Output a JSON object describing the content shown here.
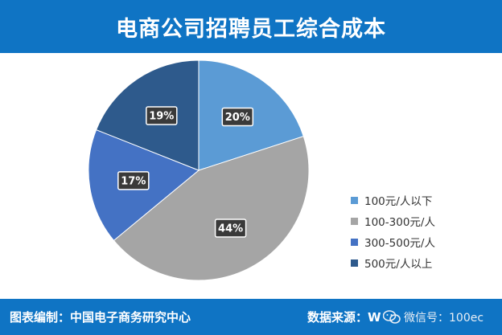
{
  "header": {
    "title": "电商公司招聘员工综合成本"
  },
  "footer": {
    "left_label": "图表编制：中国电子商务研究中心",
    "right_label": "数据来源：W",
    "watermark": "微信号：100ec"
  },
  "chart_data": {
    "type": "pie",
    "title": "电商公司招聘员工综合成本",
    "categories": [
      "100元/人以下",
      "100-300元/人",
      "300-500元/人",
      "500元/人以上"
    ],
    "values": [
      20,
      44,
      17,
      19
    ],
    "value_labels": [
      "20%",
      "44%",
      "17%",
      "19%"
    ],
    "colors": [
      "#5b9bd5",
      "#a5a5a5",
      "#4472c4",
      "#2e5a8c"
    ],
    "start_angle_deg": 0,
    "direction": "clockwise",
    "legend": {
      "position": "right"
    }
  }
}
